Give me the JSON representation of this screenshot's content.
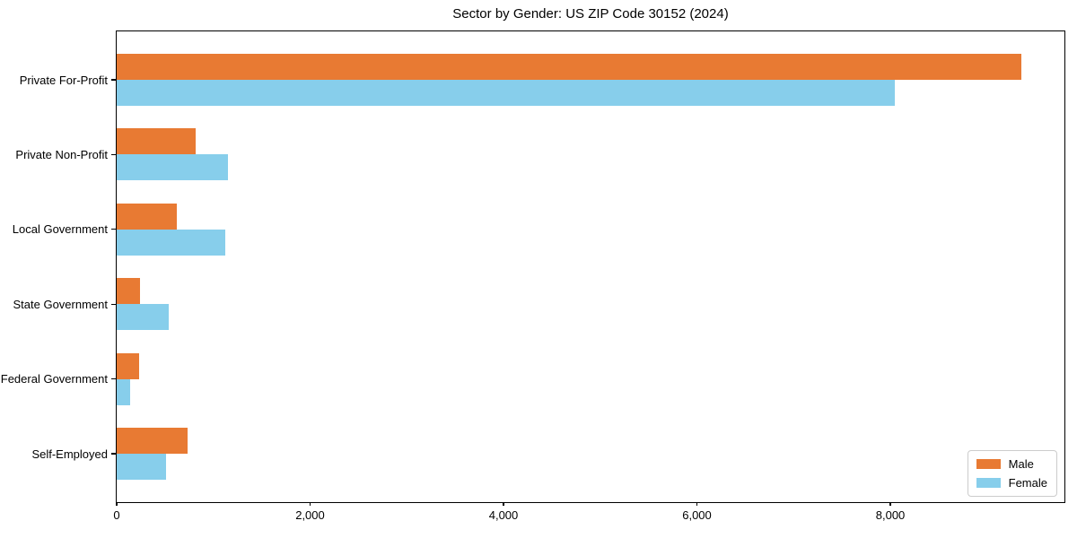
{
  "chart_data": {
    "type": "bar",
    "orientation": "horizontal",
    "title": "Sector by Gender: US ZIP Code 30152 (2024)",
    "categories": [
      "Private For-Profit",
      "Private Non-Profit",
      "Local Government",
      "State Government",
      "Federal Government",
      "Self-Employed"
    ],
    "series": [
      {
        "name": "Male",
        "color": "#e87a33",
        "values": [
          9350,
          820,
          620,
          240,
          230,
          730
        ]
      },
      {
        "name": "Female",
        "color": "#87ceeb",
        "values": [
          8050,
          1150,
          1120,
          540,
          140,
          510
        ]
      }
    ],
    "xlabel": "",
    "ylabel": "",
    "xlim": [
      0,
      9800
    ],
    "xticks": [
      0,
      2000,
      4000,
      6000,
      8000
    ],
    "xtick_labels": [
      "0",
      "2,000",
      "4,000",
      "6,000",
      "8,000"
    ],
    "grid": false,
    "legend": {
      "position": "lower right",
      "entries": [
        "Male",
        "Female"
      ]
    }
  },
  "colors": {
    "male": "#e87a33",
    "female": "#87ceeb",
    "axis": "#000000",
    "legend_border": "#cccccc",
    "background": "#ffffff"
  }
}
